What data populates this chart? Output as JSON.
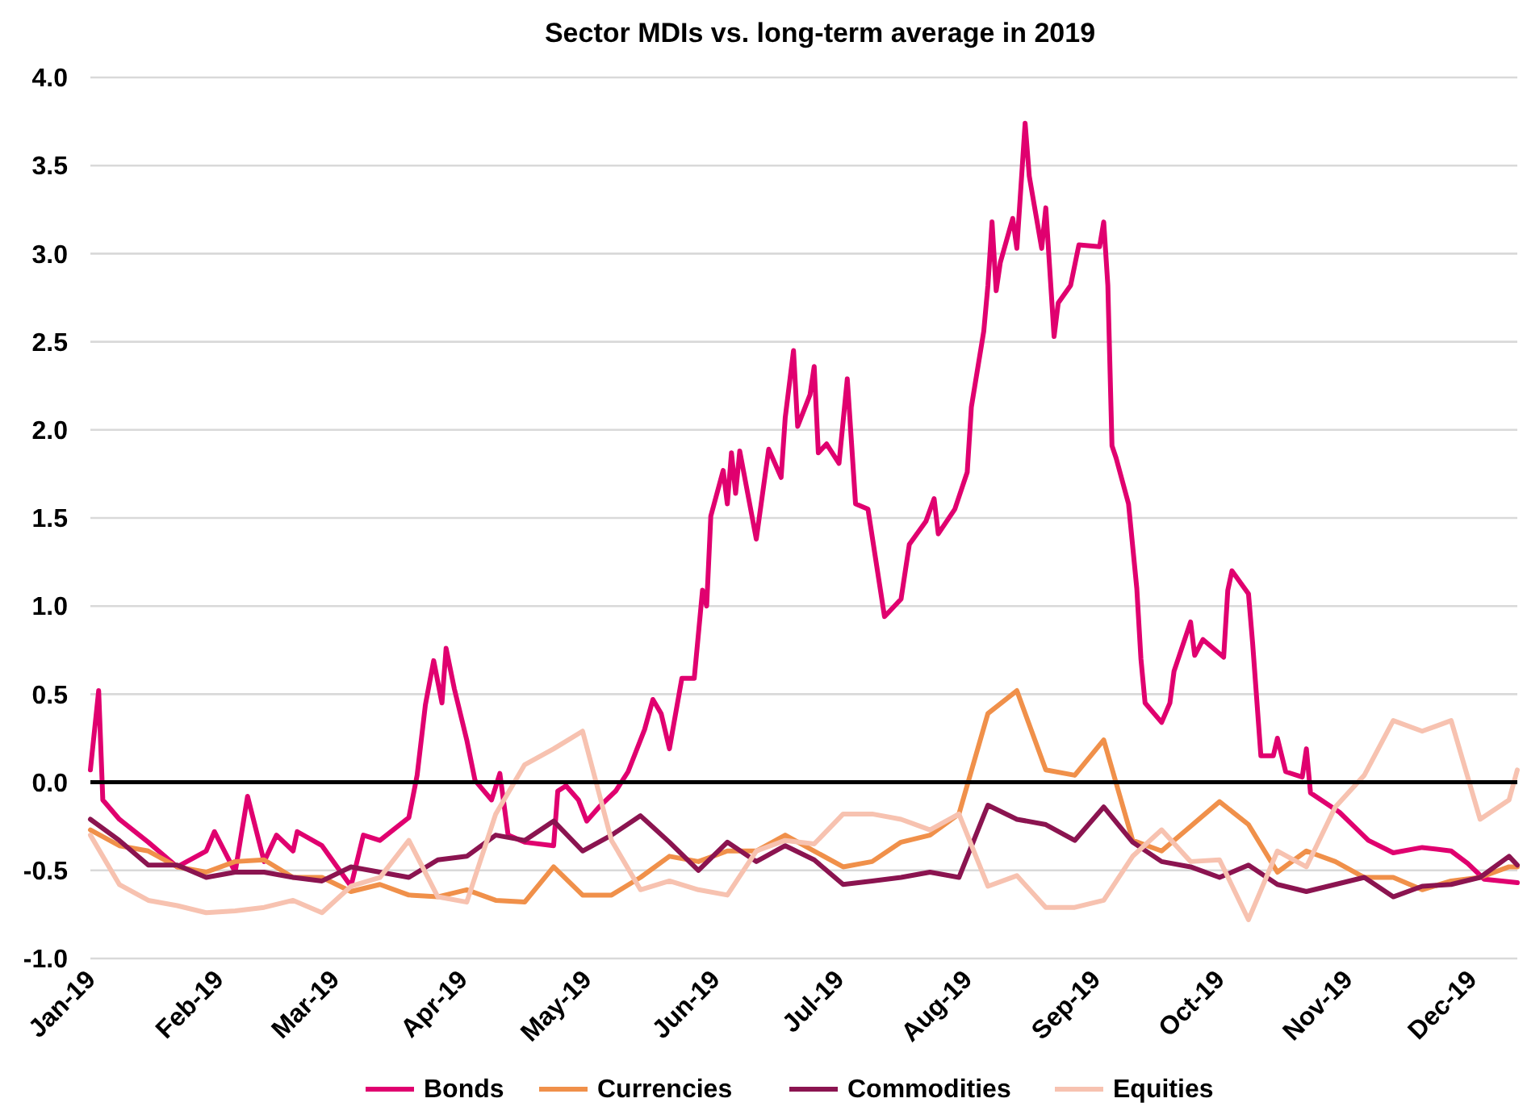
{
  "chart_data": {
    "type": "line",
    "title": "Sector MDIs vs. long-term average in 2019",
    "x": [
      "2019-01-01",
      "2019-01-08",
      "2019-01-15",
      "2019-01-22",
      "2019-01-29",
      "2019-02-05",
      "2019-02-12",
      "2019-02-19",
      "2019-02-26",
      "2019-03-05",
      "2019-03-12",
      "2019-03-19",
      "2019-03-26",
      "2019-04-02",
      "2019-04-09",
      "2019-04-16",
      "2019-04-23",
      "2019-04-30",
      "2019-05-07",
      "2019-05-14",
      "2019-05-21",
      "2019-05-28",
      "2019-06-04",
      "2019-06-11",
      "2019-06-18",
      "2019-06-25",
      "2019-07-02",
      "2019-07-09",
      "2019-07-16",
      "2019-07-23",
      "2019-07-30",
      "2019-08-06",
      "2019-08-13",
      "2019-08-20",
      "2019-08-27",
      "2019-09-03",
      "2019-09-10",
      "2019-09-17",
      "2019-09-24",
      "2019-10-01",
      "2019-10-08",
      "2019-10-15",
      "2019-10-22",
      "2019-10-29",
      "2019-11-05",
      "2019-11-12",
      "2019-11-19",
      "2019-11-26",
      "2019-12-03",
      "2019-12-10",
      "2019-12-12"
    ],
    "xlim": [
      "2019-01-01",
      "2019-12-12"
    ],
    "xticks": [
      {
        "value": "2019-01-01",
        "label": "Jan-19"
      },
      {
        "value": "2019-02-01",
        "label": "Feb-19"
      },
      {
        "value": "2019-03-01",
        "label": "Mar-19"
      },
      {
        "value": "2019-04-01",
        "label": "Apr-19"
      },
      {
        "value": "2019-05-01",
        "label": "May-19"
      },
      {
        "value": "2019-06-01",
        "label": "Jun-19"
      },
      {
        "value": "2019-07-01",
        "label": "Jul-19"
      },
      {
        "value": "2019-08-01",
        "label": "Aug-19"
      },
      {
        "value": "2019-09-01",
        "label": "Sep-19"
      },
      {
        "value": "2019-10-01",
        "label": "Oct-19"
      },
      {
        "value": "2019-11-01",
        "label": "Nov-19"
      },
      {
        "value": "2019-12-01",
        "label": "Dec-19"
      }
    ],
    "ylim": [
      -1,
      4
    ],
    "yticks": [
      {
        "value": -1,
        "label": "-1.0"
      },
      {
        "value": -0.5,
        "label": "-0.5"
      },
      {
        "value": 0,
        "label": "0.0"
      },
      {
        "value": 0.5,
        "label": "0.5"
      },
      {
        "value": 1,
        "label": "1.0"
      },
      {
        "value": 1.5,
        "label": "1.5"
      },
      {
        "value": 2,
        "label": "2.0"
      },
      {
        "value": 2.5,
        "label": "2.5"
      },
      {
        "value": 3,
        "label": "3.0"
      },
      {
        "value": 3.5,
        "label": "3.5"
      },
      {
        "value": 4,
        "label": "4.0"
      }
    ],
    "grid": "y",
    "legend": "bottom",
    "marker": "none",
    "line_style": "solid",
    "ref_lines": [
      {
        "axis": "y",
        "value": 0,
        "color": "#000000"
      }
    ],
    "series": [
      {
        "name": "Bonds",
        "color": "#e0006f",
        "x": [
          "2019-01-01",
          "2019-01-03",
          "2019-01-04",
          "2019-01-08",
          "2019-01-15",
          "2019-01-22",
          "2019-01-29",
          "2019-01-31",
          "2019-02-05",
          "2019-02-08",
          "2019-02-12",
          "2019-02-15",
          "2019-02-19",
          "2019-02-20",
          "2019-02-26",
          "2019-03-05",
          "2019-03-08",
          "2019-03-12",
          "2019-03-19",
          "2019-03-21",
          "2019-03-23",
          "2019-03-25",
          "2019-03-27",
          "2019-03-28",
          "2019-03-30",
          "2019-04-02",
          "2019-04-04",
          "2019-04-08",
          "2019-04-10",
          "2019-04-12",
          "2019-04-16",
          "2019-04-23",
          "2019-04-24",
          "2019-04-26",
          "2019-04-29",
          "2019-05-01",
          "2019-05-04",
          "2019-05-08",
          "2019-05-11",
          "2019-05-15",
          "2019-05-17",
          "2019-05-19",
          "2019-05-21",
          "2019-05-24",
          "2019-05-27",
          "2019-05-29",
          "2019-05-30",
          "2019-05-31",
          "2019-06-03",
          "2019-06-04",
          "2019-06-05",
          "2019-06-06",
          "2019-06-07",
          "2019-06-11",
          "2019-06-14",
          "2019-06-17",
          "2019-06-18",
          "2019-06-20",
          "2019-06-21",
          "2019-06-24",
          "2019-06-25",
          "2019-06-26",
          "2019-06-28",
          "2019-07-01",
          "2019-07-03",
          "2019-07-05",
          "2019-07-08",
          "2019-07-12",
          "2019-07-16",
          "2019-07-18",
          "2019-07-22",
          "2019-07-24",
          "2019-07-25",
          "2019-07-29",
          "2019-08-01",
          "2019-08-02",
          "2019-08-05",
          "2019-08-06",
          "2019-08-07",
          "2019-08-08",
          "2019-08-09",
          "2019-08-12",
          "2019-08-13",
          "2019-08-15",
          "2019-08-16",
          "2019-08-19",
          "2019-08-20",
          "2019-08-22",
          "2019-08-23",
          "2019-08-26",
          "2019-08-28",
          "2019-09-02",
          "2019-09-03",
          "2019-09-04",
          "2019-09-05",
          "2019-09-06",
          "2019-09-09",
          "2019-09-11",
          "2019-09-12",
          "2019-09-13",
          "2019-09-17",
          "2019-09-19",
          "2019-09-20",
          "2019-09-24",
          "2019-09-25",
          "2019-09-27",
          "2019-10-02",
          "2019-10-03",
          "2019-10-04",
          "2019-10-08",
          "2019-10-09",
          "2019-10-11",
          "2019-10-14",
          "2019-10-15",
          "2019-10-17",
          "2019-10-21",
          "2019-10-22",
          "2019-10-23",
          "2019-10-30",
          "2019-11-06",
          "2019-11-12",
          "2019-11-19",
          "2019-11-26",
          "2019-11-30",
          "2019-12-04",
          "2019-12-12"
        ],
        "values": [
          0.07,
          0.52,
          -0.1,
          -0.21,
          -0.34,
          -0.48,
          -0.39,
          -0.28,
          -0.51,
          -0.08,
          -0.45,
          -0.3,
          -0.39,
          -0.28,
          -0.36,
          -0.59,
          -0.3,
          -0.33,
          -0.2,
          0.04,
          0.44,
          0.69,
          0.45,
          0.76,
          0.53,
          0.24,
          0.01,
          -0.1,
          0.05,
          -0.3,
          -0.34,
          -0.36,
          -0.05,
          -0.02,
          -0.1,
          -0.22,
          -0.14,
          -0.05,
          0.06,
          0.3,
          0.47,
          0.39,
          0.19,
          0.59,
          0.59,
          1.09,
          1.0,
          1.51,
          1.77,
          1.58,
          1.87,
          1.64,
          1.88,
          1.38,
          1.89,
          1.73,
          2.07,
          2.45,
          2.02,
          2.2,
          2.36,
          1.87,
          1.92,
          1.81,
          2.29,
          1.58,
          1.55,
          0.94,
          1.04,
          1.35,
          1.48,
          1.61,
          1.41,
          1.55,
          1.76,
          2.13,
          2.56,
          2.82,
          3.18,
          2.79,
          2.95,
          3.2,
          3.03,
          3.74,
          3.44,
          3.03,
          3.26,
          2.53,
          2.72,
          2.82,
          3.05,
          3.04,
          3.18,
          2.82,
          1.91,
          1.84,
          1.58,
          1.1,
          0.7,
          0.45,
          0.34,
          0.45,
          0.63,
          0.91,
          0.72,
          0.81,
          0.71,
          1.09,
          1.2,
          1.07,
          0.79,
          0.15,
          0.15,
          0.25,
          0.06,
          0.03,
          0.19,
          -0.06,
          -0.17,
          -0.33,
          -0.4,
          -0.37,
          -0.39,
          -0.46,
          -0.55,
          -0.57
        ]
      },
      {
        "name": "Currencies",
        "color": "#f0904a",
        "values": [
          -0.27,
          -0.36,
          -0.39,
          -0.48,
          -0.51,
          -0.45,
          -0.44,
          -0.54,
          -0.54,
          -0.62,
          -0.58,
          -0.64,
          -0.65,
          -0.61,
          -0.67,
          -0.68,
          -0.48,
          -0.64,
          -0.64,
          -0.54,
          -0.42,
          -0.45,
          -0.39,
          -0.39,
          -0.3,
          -0.39,
          -0.48,
          -0.45,
          -0.34,
          -0.3,
          -0.18,
          0.39,
          0.52,
          0.07,
          0.04,
          0.24,
          -0.33,
          -0.39,
          -0.25,
          -0.11,
          -0.24,
          -0.51,
          -0.39,
          -0.45,
          -0.54,
          -0.54,
          -0.61,
          -0.56,
          -0.54,
          -0.48,
          -0.48
        ]
      },
      {
        "name": "Commodities",
        "color": "#8b1450",
        "values": [
          -0.21,
          -0.33,
          -0.47,
          -0.47,
          -0.54,
          -0.51,
          -0.51,
          -0.54,
          -0.56,
          -0.48,
          -0.51,
          -0.54,
          -0.44,
          -0.42,
          -0.3,
          -0.33,
          -0.22,
          -0.39,
          -0.3,
          -0.19,
          -0.34,
          -0.5,
          -0.34,
          -0.45,
          -0.36,
          -0.44,
          -0.58,
          -0.56,
          -0.54,
          -0.51,
          -0.54,
          -0.13,
          -0.21,
          -0.24,
          -0.33,
          -0.14,
          -0.34,
          -0.45,
          -0.48,
          -0.54,
          -0.47,
          -0.58,
          -0.62,
          -0.58,
          -0.54,
          -0.65,
          -0.59,
          -0.58,
          -0.54,
          -0.42,
          -0.47
        ]
      },
      {
        "name": "Equities",
        "color": "#f7c2b0",
        "values": [
          -0.3,
          -0.58,
          -0.67,
          -0.7,
          -0.74,
          -0.73,
          -0.71,
          -0.67,
          -0.74,
          -0.59,
          -0.54,
          -0.33,
          -0.65,
          -0.68,
          -0.18,
          0.1,
          0.19,
          0.29,
          -0.33,
          -0.61,
          -0.56,
          -0.61,
          -0.64,
          -0.39,
          -0.33,
          -0.35,
          -0.18,
          -0.18,
          -0.21,
          -0.27,
          -0.18,
          -0.59,
          -0.53,
          -0.71,
          -0.71,
          -0.67,
          -0.42,
          -0.27,
          -0.45,
          -0.44,
          -0.78,
          -0.39,
          -0.48,
          -0.14,
          0.04,
          0.35,
          0.29,
          0.35,
          -0.21,
          -0.1,
          0.07
        ]
      }
    ]
  }
}
